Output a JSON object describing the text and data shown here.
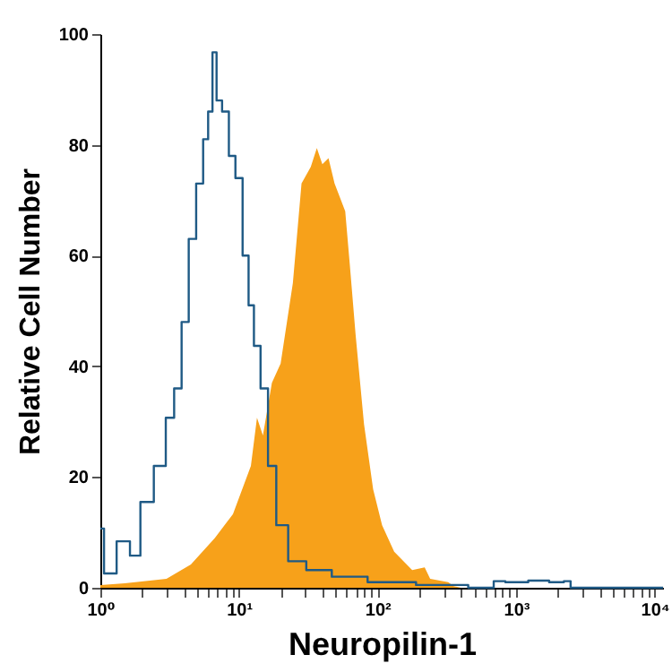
{
  "chart_data": {
    "type": "area",
    "xlabel": "Neuropilin-1",
    "ylabel": "Relative Cell Number",
    "log": "x",
    "grid": false,
    "xlim": [
      1,
      11500
    ],
    "ylim": [
      0,
      100
    ],
    "xticks": [
      {
        "value": 1,
        "label": "10⁰"
      },
      {
        "value": 2,
        "label": null
      },
      {
        "value": 3,
        "label": null
      },
      {
        "value": 4,
        "label": null
      },
      {
        "value": 5,
        "label": null
      },
      {
        "value": 6,
        "label": null
      },
      {
        "value": 7,
        "label": null
      },
      {
        "value": 8,
        "label": null
      },
      {
        "value": 9,
        "label": null
      },
      {
        "value": 10,
        "label": "10¹"
      },
      {
        "value": 20,
        "label": null
      },
      {
        "value": 30,
        "label": null
      },
      {
        "value": 40,
        "label": null
      },
      {
        "value": 50,
        "label": null
      },
      {
        "value": 60,
        "label": null
      },
      {
        "value": 70,
        "label": null
      },
      {
        "value": 80,
        "label": null
      },
      {
        "value": 90,
        "label": null
      },
      {
        "value": 100,
        "label": "10²"
      },
      {
        "value": 200,
        "label": null
      },
      {
        "value": 300,
        "label": null
      },
      {
        "value": 400,
        "label": null
      },
      {
        "value": 500,
        "label": null
      },
      {
        "value": 600,
        "label": null
      },
      {
        "value": 700,
        "label": null
      },
      {
        "value": 800,
        "label": null
      },
      {
        "value": 900,
        "label": null
      },
      {
        "value": 1000,
        "label": "10³"
      },
      {
        "value": 2000,
        "label": null
      },
      {
        "value": 3000,
        "label": null
      },
      {
        "value": 4000,
        "label": null
      },
      {
        "value": 5000,
        "label": null
      },
      {
        "value": 6000,
        "label": null
      },
      {
        "value": 7000,
        "label": null
      },
      {
        "value": 8000,
        "label": null
      },
      {
        "value": 9000,
        "label": null
      },
      {
        "value": 10000,
        "label": "10⁴"
      }
    ],
    "yticks": [
      0,
      20,
      40,
      60,
      80,
      100
    ],
    "series": [
      {
        "color": "#f7a11a",
        "x": [
          1,
          1.5,
          3,
          4.5,
          6.7,
          9.06,
          12.2,
          13.5,
          14.9,
          17.3,
          20,
          24.5,
          28.3,
          33,
          36.5,
          40,
          44.3,
          49,
          58.5,
          63,
          69.5,
          80,
          93,
          108,
          132,
          178,
          219,
          240,
          324,
          355,
          400
        ],
        "values": [
          0.5,
          0.8,
          1.6,
          4.2,
          9,
          13.3,
          22,
          30.7,
          27.5,
          37,
          40.5,
          55,
          73,
          76,
          79.4,
          76.5,
          77.6,
          73,
          68,
          58.6,
          45.7,
          29.5,
          17.8,
          11.3,
          6.5,
          3.2,
          3.7,
          1.6,
          1,
          0.3,
          0
        ]
      },
      {
        "type": "step",
        "color": "#1f5a85",
        "x": [
          1,
          1.13,
          1.52,
          1.76,
          2.15,
          2.75,
          3.2,
          3.63,
          4.1,
          4.6,
          5.25,
          5.8,
          6.2,
          6.7,
          7.1,
          8.05,
          8.9,
          10,
          11.3,
          12.2,
          13.5,
          15.2,
          17.3,
          20,
          25.7,
          36.5,
          60,
          120,
          300,
          680,
          700,
          1000,
          1500,
          2000,
          2450,
          2500,
          11500
        ],
        "values": [
          10.7,
          2.6,
          8.4,
          5.8,
          15.5,
          22,
          30.7,
          36,
          48,
          63,
          73,
          81,
          86,
          96.7,
          88,
          86,
          78,
          74,
          60,
          51,
          43.7,
          36,
          22,
          11.3,
          4.8,
          3.2,
          2,
          1,
          0.5,
          0,
          1.2,
          1,
          1.3,
          1,
          1.2,
          0,
          0
        ]
      }
    ]
  }
}
